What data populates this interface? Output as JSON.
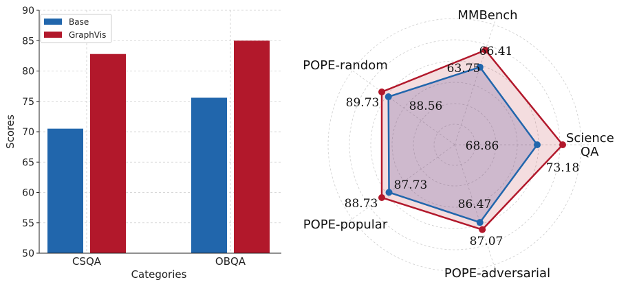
{
  "chart_data": [
    {
      "type": "bar",
      "categories": [
        "CSQA",
        "OBQA"
      ],
      "series": [
        {
          "name": "Base",
          "values": [
            70.5,
            75.6
          ],
          "color": "#2166ac"
        },
        {
          "name": "GraphVis",
          "values": [
            82.8,
            85.0
          ],
          "color": "#b2182b"
        }
      ],
      "xlabel": "Categories",
      "ylabel": "Scores",
      "ylim": [
        50,
        90
      ],
      "yticks": [
        50,
        55,
        60,
        65,
        70,
        75,
        80,
        85,
        90
      ],
      "grid": true,
      "legend": "top-left"
    },
    {
      "type": "radar",
      "axes": [
        "Science QA",
        "MMBench",
        "POPE-random",
        "POPE-popular",
        "POPE-adversarial"
      ],
      "series": [
        {
          "values": [
            68.86,
            63.75,
            88.56,
            87.73,
            86.47
          ],
          "color": "#2166ac"
        },
        {
          "values": [
            73.18,
            66.41,
            89.73,
            88.73,
            87.07
          ],
          "color": "#b2182b"
        }
      ],
      "grid": true
    }
  ]
}
